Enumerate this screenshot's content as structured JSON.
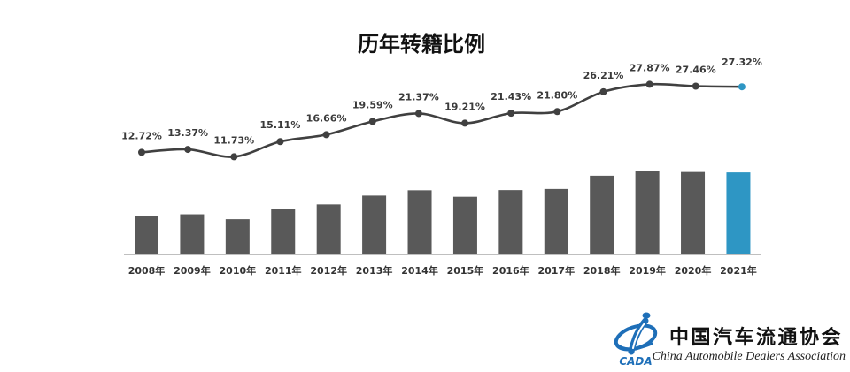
{
  "chart_data": {
    "type": "bar",
    "title": "历年转籍比例",
    "categories": [
      "2008年",
      "2009年",
      "2010年",
      "2011年",
      "2012年",
      "2013年",
      "2014年",
      "2015年",
      "2016年",
      "2017年",
      "2018年",
      "2019年",
      "2020年",
      "2021年"
    ],
    "series": [
      {
        "type": "line",
        "smooth": true,
        "values": [
          12.72,
          13.37,
          11.73,
          15.11,
          16.66,
          19.59,
          21.37,
          19.21,
          21.43,
          21.8,
          26.21,
          27.87,
          27.46,
          27.32
        ],
        "labels": [
          "12.72%",
          "13.37%",
          "11.73%",
          "15.11%",
          "16.66%",
          "19.59%",
          "21.37%",
          "19.21%",
          "21.43%",
          "21.80%",
          "26.21%",
          "27.87%",
          "27.46%",
          "27.32%"
        ]
      },
      {
        "type": "bar",
        "values": [
          12.72,
          13.37,
          11.73,
          15.11,
          16.66,
          19.59,
          21.37,
          19.21,
          21.43,
          21.8,
          26.21,
          27.87,
          27.46,
          27.32
        ]
      }
    ],
    "ylim": [
      0,
      30
    ],
    "grid": false,
    "legend": false,
    "highlight_last": true,
    "colors": {
      "bar": "#595959",
      "line": "#404040",
      "highlight": "#2e96c4"
    }
  },
  "logo": {
    "abbr": "CADA",
    "name_cn": "中国汽车流通协会",
    "name_en": "China Automobile Dealers Association",
    "colors": {
      "emblem": "#1e6fb8",
      "emblem_light": "#ffffff"
    }
  }
}
